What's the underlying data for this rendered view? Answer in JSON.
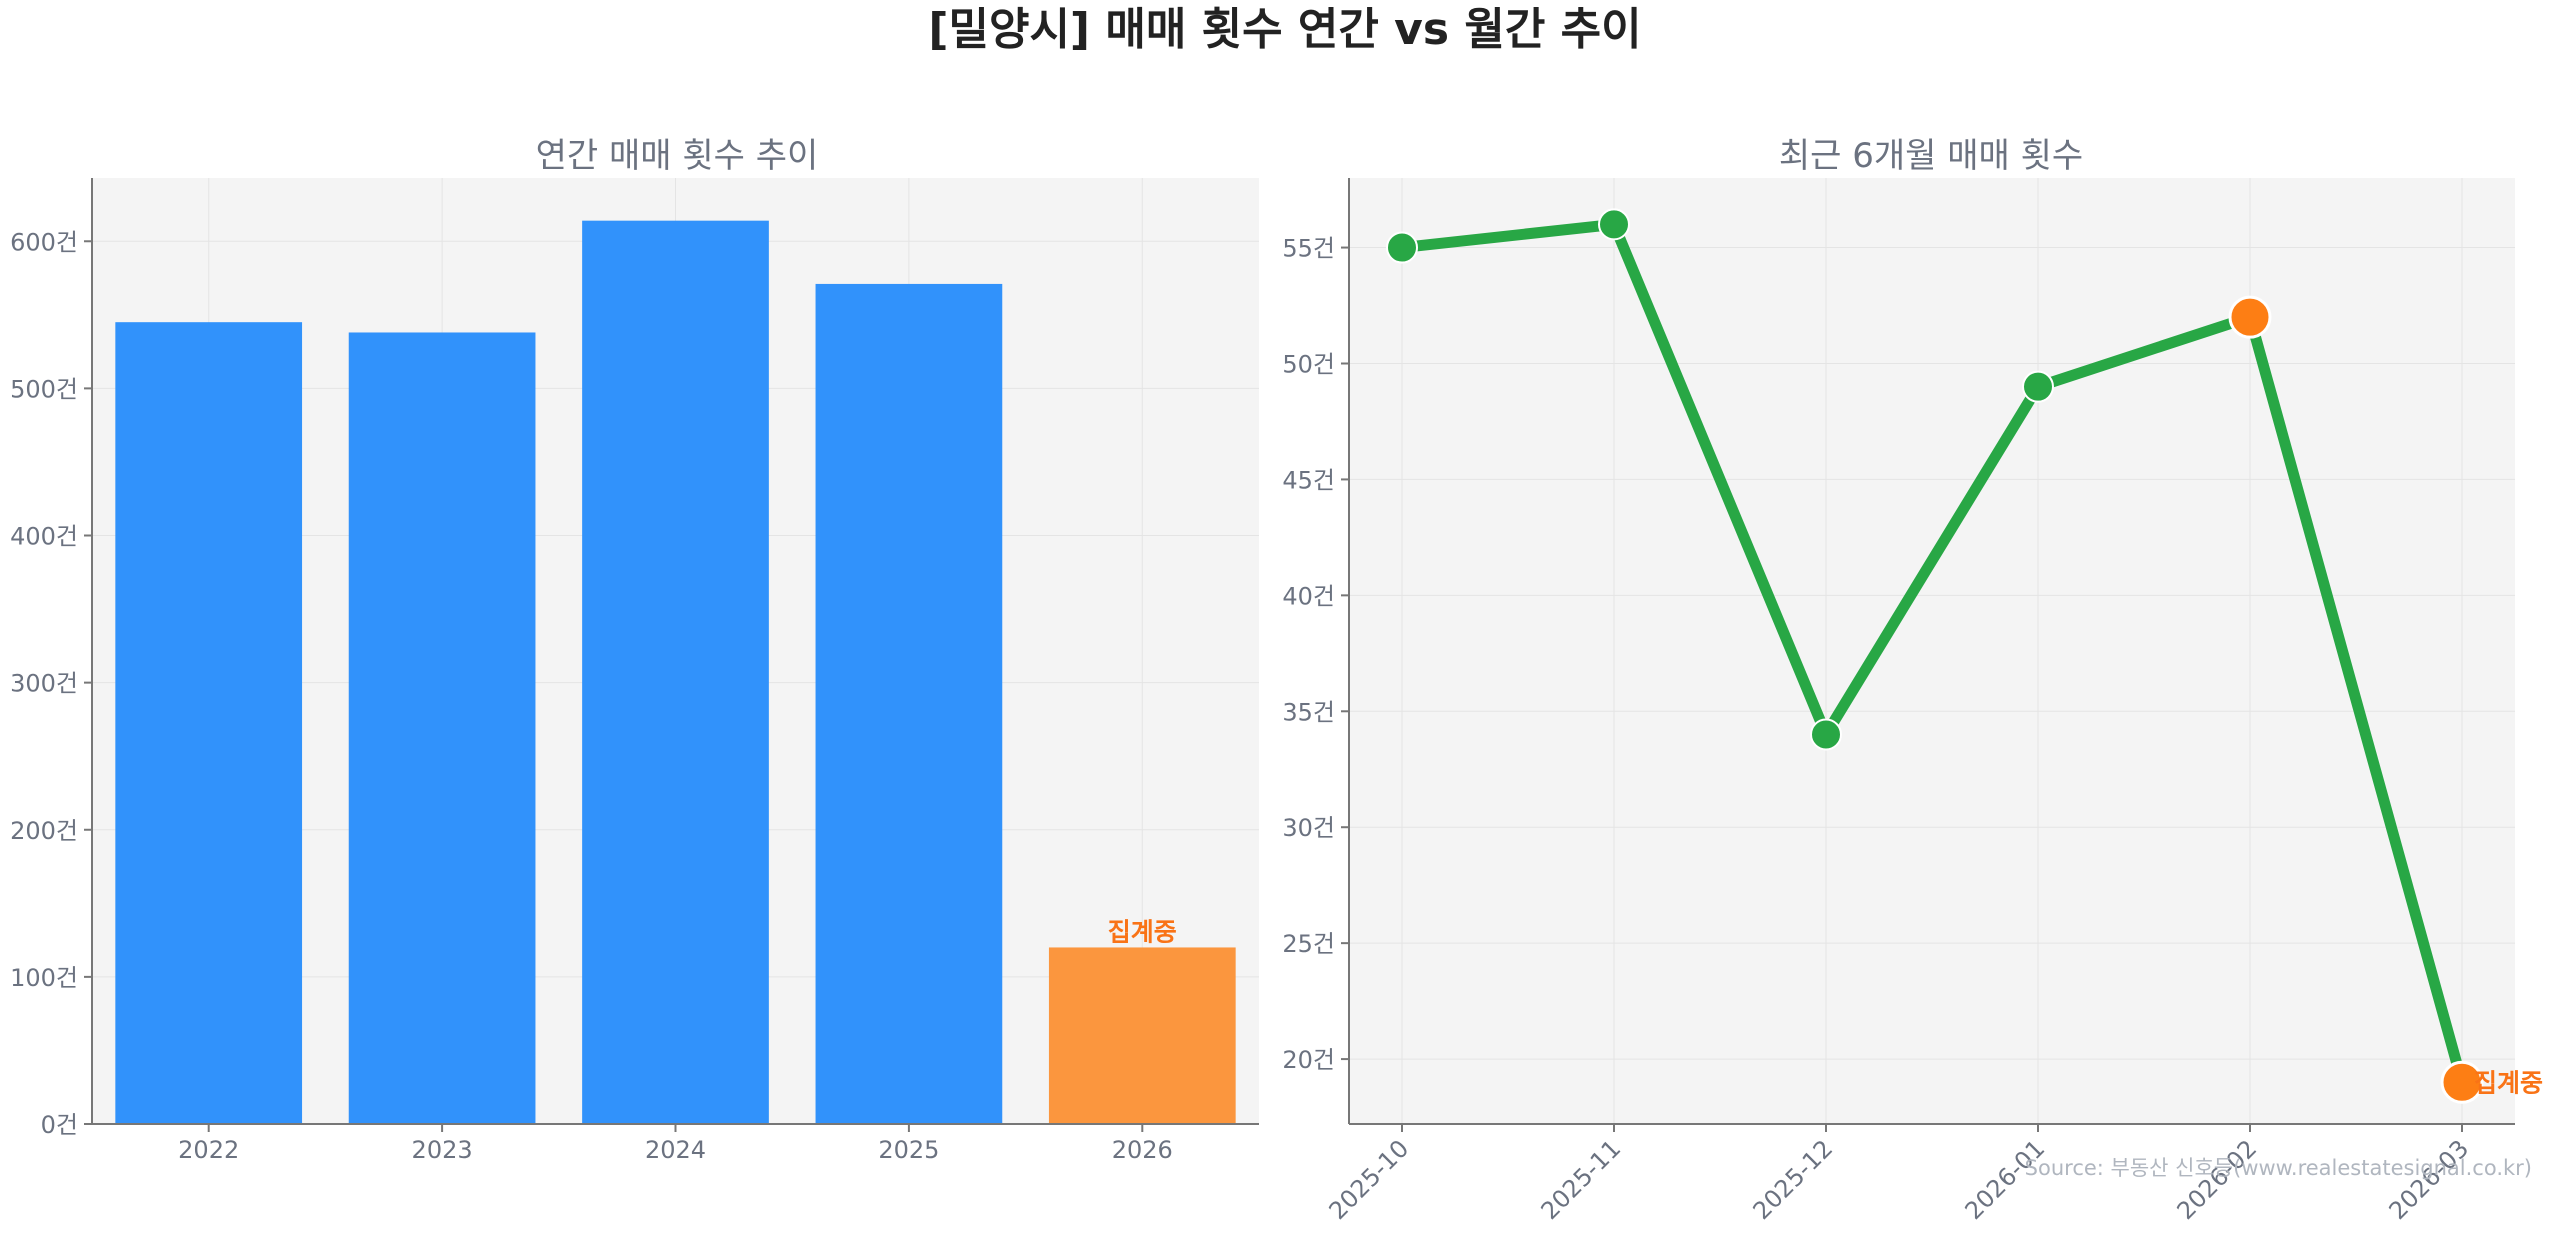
{
  "title": "[밀양시] 매매 횟수 연간 vs 월간 추이",
  "source": "Source: 부동산 신호등(www.realestatesignal.co.kr)",
  "colors": {
    "bar": "#3192fb",
    "bar_partial": "#fb963e",
    "line": "#28a745",
    "marker_partial": "#fd7e14",
    "note": "#f97316",
    "plot_bg": "#f4f4f4"
  },
  "chart_data": [
    {
      "type": "bar",
      "title": "연간 매매 횟수 추이",
      "categories": [
        "2022",
        "2023",
        "2024",
        "2025",
        "2026"
      ],
      "values": [
        545,
        538,
        614,
        571,
        120
      ],
      "partial_index": 4,
      "partial_label": "집계중",
      "ylim": [
        0,
        643
      ],
      "yticks": [
        0,
        100,
        200,
        300,
        400,
        500,
        600
      ],
      "ytick_labels": [
        "0건",
        "100건",
        "200건",
        "300건",
        "400건",
        "500건",
        "600건"
      ],
      "grid": true
    },
    {
      "type": "line",
      "title": "최근 6개월 매매 횟수",
      "categories": [
        "2025-10",
        "2025-11",
        "2025-12",
        "2026-01",
        "2026-02",
        "2026-03"
      ],
      "values": [
        55,
        56,
        34,
        49,
        52,
        19
      ],
      "highlight_indices": [
        4,
        5
      ],
      "partial_label": "집계중",
      "ylim": [
        17.2,
        58
      ],
      "yticks": [
        20,
        25,
        30,
        35,
        40,
        45,
        50,
        55
      ],
      "ytick_labels": [
        "20건",
        "25건",
        "30건",
        "35건",
        "40건",
        "45건",
        "50건",
        "55건"
      ],
      "grid": true
    }
  ]
}
